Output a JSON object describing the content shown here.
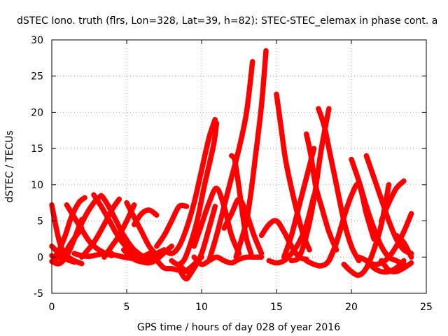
{
  "chart_data": {
    "type": "scatter",
    "title": "dSTEC Iono. truth (flrs, Lon=328, Lat=39, h=82): STEC-STEC_elemax in phase cont. a",
    "xlabel": "GPS time / hours of day 028 of year 2016",
    "ylabel": "dSTEC  / TECUs",
    "xlim": [
      0,
      25
    ],
    "ylim": [
      -5,
      30
    ],
    "xticks": [
      0,
      5,
      10,
      15,
      20,
      25
    ],
    "yticks": [
      -5,
      0,
      5,
      10,
      15,
      20,
      25,
      30
    ],
    "grid": true,
    "marker": "plus",
    "color": "#ff0000",
    "series": [
      {
        "x": [
          0.0,
          0.3,
          0.6,
          1.0,
          1.5,
          2.0
        ],
        "y": [
          7.2,
          4.0,
          1.5,
          0.2,
          -0.5,
          -0.9
        ]
      },
      {
        "x": [
          0.0,
          0.5,
          1.0,
          1.5,
          2.0
        ],
        "y": [
          -0.6,
          -0.9,
          0.2,
          2.5,
          5.2
        ]
      },
      {
        "x": [
          0.0,
          0.5,
          1.0,
          1.5
        ],
        "y": [
          1.5,
          0.5,
          -0.3,
          -0.7
        ]
      },
      {
        "x": [
          0.0,
          0.3,
          0.8,
          1.3,
          2.0
        ],
        "y": [
          0.2,
          -0.2,
          0.4,
          2.0,
          4.0
        ]
      },
      {
        "x": [
          0.2,
          0.5,
          0.9,
          1.3,
          1.8,
          2.2
        ],
        "y": [
          0.0,
          1.0,
          3.0,
          5.5,
          7.5,
          8.2
        ]
      },
      {
        "x": [
          1.0,
          1.5,
          2.0,
          2.5,
          3.0,
          3.5,
          4.0
        ],
        "y": [
          7.2,
          5.5,
          3.8,
          2.2,
          1.2,
          0.6,
          0.2
        ]
      },
      {
        "x": [
          0.8,
          1.5,
          2.2,
          2.8,
          3.3
        ],
        "y": [
          0.0,
          2.5,
          5.5,
          7.5,
          8.5
        ]
      },
      {
        "x": [
          2.8,
          3.3,
          3.8,
          4.3,
          4.8,
          5.5
        ],
        "y": [
          8.6,
          7.0,
          5.2,
          3.3,
          1.8,
          0.3
        ]
      },
      {
        "x": [
          1.5,
          2.0,
          2.5,
          3.0,
          3.5,
          4.0
        ],
        "y": [
          0.5,
          0.2,
          0.1,
          0.3,
          0.5,
          0.5
        ]
      },
      {
        "x": [
          2.0,
          2.8,
          3.5,
          4.0,
          4.5
        ],
        "y": [
          0.0,
          2.0,
          4.5,
          6.5,
          8.0
        ]
      },
      {
        "x": [
          3.4,
          3.8,
          4.3,
          4.8,
          5.5,
          6.5
        ],
        "y": [
          8.3,
          7.0,
          5.0,
          3.0,
          1.0,
          -0.5
        ]
      },
      {
        "x": [
          3.5,
          4.0,
          4.5,
          5.0,
          5.5
        ],
        "y": [
          0.0,
          1.5,
          3.0,
          5.0,
          7.2
        ]
      },
      {
        "x": [
          4.2,
          4.8,
          5.5,
          6.0,
          6.5
        ],
        "y": [
          0.3,
          0.0,
          -0.2,
          0.0,
          0.5
        ]
      },
      {
        "x": [
          5.0,
          5.5,
          6.0,
          6.5,
          7.0
        ],
        "y": [
          7.5,
          5.5,
          3.5,
          1.5,
          0.3
        ]
      },
      {
        "x": [
          4.8,
          5.5,
          6.0,
          6.5,
          7.0,
          7.5
        ],
        "y": [
          1.0,
          -0.3,
          -0.6,
          -0.2,
          0.5,
          1.0
        ]
      },
      {
        "x": [
          5.0,
          5.8,
          6.5,
          7.0,
          7.5,
          8.0
        ],
        "y": [
          0.5,
          -0.5,
          -0.8,
          -0.3,
          0.6,
          1.5
        ]
      },
      {
        "x": [
          5.5,
          6.0,
          6.5,
          7.0
        ],
        "y": [
          4.5,
          6.0,
          6.5,
          5.8
        ]
      },
      {
        "x": [
          6.5,
          7.0,
          7.5,
          8.0,
          8.5,
          9.0,
          9.5,
          10.0
        ],
        "y": [
          0.0,
          -0.5,
          -1.5,
          -1.6,
          -1.8,
          -1.8,
          -1.0,
          0.0
        ]
      },
      {
        "x": [
          7.0,
          7.5,
          8.0,
          8.5,
          9.0
        ],
        "y": [
          1.5,
          3.0,
          5.0,
          7.0,
          7.0
        ]
      },
      {
        "x": [
          7.5,
          8.0,
          8.5,
          9.0,
          9.5,
          10.0,
          10.5,
          10.9
        ],
        "y": [
          1.0,
          0.5,
          1.5,
          4.0,
          7.5,
          12.0,
          16.5,
          19.0
        ]
      },
      {
        "x": [
          8.0,
          8.4,
          8.8,
          9.2,
          9.7,
          10.2,
          10.8,
          11.0
        ],
        "y": [
          -0.5,
          -1.0,
          -0.5,
          1.5,
          5.0,
          10.0,
          15.5,
          18.5
        ]
      },
      {
        "x": [
          8.5,
          9.0,
          9.5,
          10.0,
          10.5,
          10.9
        ],
        "y": [
          -1.0,
          -2.0,
          -1.5,
          0.5,
          4.0,
          7.0
        ]
      },
      {
        "x": [
          8.6,
          8.8,
          9.0,
          9.2,
          9.5
        ],
        "y": [
          -2.0,
          -2.7,
          -3.0,
          -2.5,
          -1.5
        ]
      },
      {
        "x": [
          9.5,
          10.0,
          10.5,
          11.0,
          11.5,
          12.0,
          12.5
        ],
        "y": [
          1.5,
          4.5,
          7.5,
          9.5,
          7.0,
          3.0,
          0.5
        ]
      },
      {
        "x": [
          9.5,
          10.0,
          10.5,
          11.0,
          11.5,
          12.0,
          12.5,
          13.0,
          13.5,
          14.0
        ],
        "y": [
          0.0,
          -1.0,
          -0.5,
          0.0,
          -0.5,
          -0.8,
          -0.3,
          0.0,
          0.0,
          0.0
        ]
      },
      {
        "x": [
          10.5,
          11.0,
          11.5,
          12.0,
          12.5,
          13.0,
          13.4
        ],
        "y": [
          -0.5,
          3.0,
          7.0,
          11.0,
          15.0,
          20.0,
          27.0
        ]
      },
      {
        "x": [
          12.0,
          12.2,
          12.4,
          12.6,
          12.8,
          13.0,
          13.3
        ],
        "y": [
          14.0,
          13.5,
          11.0,
          8.0,
          5.0,
          2.5,
          0.5
        ]
      },
      {
        "x": [
          12.3,
          12.6,
          13.0,
          13.3,
          13.6,
          14.0,
          14.3
        ],
        "y": [
          0.0,
          2.0,
          5.0,
          9.0,
          14.0,
          21.0,
          28.5
        ]
      },
      {
        "x": [
          11.5,
          12.0,
          12.5,
          13.0,
          13.5,
          14.0
        ],
        "y": [
          4.0,
          6.0,
          8.0,
          6.0,
          3.0,
          0.5
        ]
      },
      {
        "x": [
          14.0,
          14.5,
          15.0,
          15.5,
          16.0,
          16.5,
          17.0
        ],
        "y": [
          3.0,
          4.5,
          5.0,
          3.5,
          1.5,
          0.0,
          -0.3
        ]
      },
      {
        "x": [
          15.0,
          15.3,
          15.6,
          16.0,
          16.4,
          16.8,
          17.2
        ],
        "y": [
          22.5,
          18.0,
          13.5,
          9.5,
          6.0,
          3.0,
          1.0
        ]
      },
      {
        "x": [
          14.5,
          15.0,
          15.5,
          16.0,
          16.5,
          17.0,
          17.5
        ],
        "y": [
          -0.5,
          -0.8,
          -0.5,
          0.5,
          2.0,
          4.5,
          8.5
        ]
      },
      {
        "x": [
          15.5,
          16.0,
          16.5,
          17.0,
          17.5
        ],
        "y": [
          0.0,
          3.0,
          7.0,
          11.0,
          15.0
        ]
      },
      {
        "x": [
          16.0,
          16.5,
          17.0,
          17.5,
          18.0,
          18.5
        ],
        "y": [
          -0.5,
          0.0,
          3.0,
          8.0,
          15.0,
          20.5
        ]
      },
      {
        "x": [
          17.0,
          17.3,
          17.6,
          18.0,
          18.5,
          19.0
        ],
        "y": [
          17.0,
          14.0,
          10.0,
          7.0,
          3.5,
          1.0
        ]
      },
      {
        "x": [
          17.8,
          18.2,
          18.6,
          19.0,
          19.5,
          20.0,
          20.5
        ],
        "y": [
          20.5,
          18.0,
          14.0,
          10.0,
          5.0,
          1.5,
          -0.5
        ]
      },
      {
        "x": [
          17.0,
          17.5,
          18.0,
          18.5,
          19.0,
          19.5
        ],
        "y": [
          -0.5,
          -1.0,
          -1.2,
          -0.5,
          2.0,
          5.5
        ]
      },
      {
        "x": [
          18.5,
          19.0,
          19.5,
          20.0,
          20.5,
          21.0,
          21.5
        ],
        "y": [
          -0.5,
          2.0,
          5.5,
          8.5,
          10.0,
          6.0,
          2.5
        ]
      },
      {
        "x": [
          19.5,
          20.0,
          20.5,
          21.0,
          21.5,
          22.0,
          22.5
        ],
        "y": [
          -1.0,
          -2.0,
          -2.5,
          -1.5,
          1.0,
          4.5,
          10.0
        ]
      },
      {
        "x": [
          20.0,
          20.5,
          21.0,
          21.5,
          22.0,
          22.5,
          23.0,
          23.5
        ],
        "y": [
          13.5,
          10.5,
          7.0,
          4.0,
          1.5,
          0.0,
          -0.5,
          -1.0
        ]
      },
      {
        "x": [
          21.0,
          21.5,
          22.0,
          22.5,
          23.0,
          23.5,
          24.0
        ],
        "y": [
          14.0,
          11.0,
          8.0,
          5.0,
          2.5,
          1.0,
          0.5
        ]
      },
      {
        "x": [
          21.0,
          21.5,
          22.0,
          22.5,
          23.0,
          23.5,
          24.0
        ],
        "y": [
          -0.5,
          -1.0,
          -0.8,
          0.0,
          1.5,
          3.5,
          6.0
        ]
      },
      {
        "x": [
          20.5,
          21.0,
          21.5,
          22.0,
          22.5,
          23.0,
          23.5
        ],
        "y": [
          0.0,
          -0.5,
          -1.5,
          -2.0,
          -2.0,
          -1.5,
          -0.5
        ]
      },
      {
        "x": [
          22.0,
          22.5,
          23.0,
          23.5,
          24.0
        ],
        "y": [
          -0.5,
          -1.8,
          -2.0,
          -1.5,
          -0.8
        ]
      },
      {
        "x": [
          22.0,
          22.5,
          23.0,
          23.5
        ],
        "y": [
          5.0,
          7.5,
          9.5,
          10.5
        ]
      },
      {
        "x": [
          23.0,
          23.5,
          24.0
        ],
        "y": [
          3.0,
          2.0,
          0.0
        ]
      }
    ]
  }
}
